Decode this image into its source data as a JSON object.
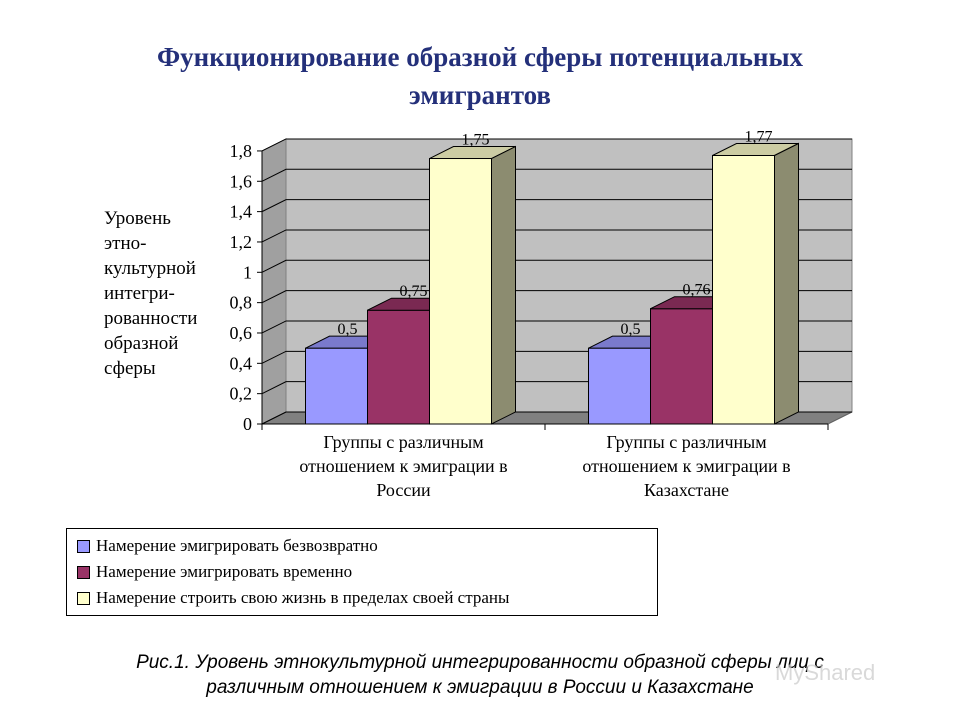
{
  "title": "Функционирование образной сферы потенциальных эмигрантов",
  "title_lines": [
    "Функционирование образной сферы потенциальных",
    "эмигрантов"
  ],
  "ylabel_lines": [
    "Уровень",
    "этно-",
    "культурной",
    "интегри-",
    "рованности",
    "образной",
    "сферы"
  ],
  "caption_lines": [
    "Рис.1. Уровень этнокультурной интегрированности образной сферы лиц с",
    "различным отношением к эмиграции в России и Казахстане"
  ],
  "watermark": "MyShared",
  "chart_data": {
    "type": "bar",
    "style": "3d-clustered",
    "ylim": [
      0,
      1.8
    ],
    "ytick_labels": [
      "0",
      "0,2",
      "0,4",
      "0,6",
      "0,8",
      "1",
      "1,2",
      "1,4",
      "1,6",
      "1,8"
    ],
    "grid": true,
    "legend_position": "bottom",
    "categories": [
      [
        "Группы с различным",
        "отношением к эмиграции в",
        "России"
      ],
      [
        "Группы с различным",
        "отношением к эмиграции в",
        "Казахстане"
      ]
    ],
    "series": [
      {
        "name": "Намерение эмигрировать безвозвратно",
        "color": "#9999ff",
        "values": [
          0.5,
          0.5
        ],
        "labels": [
          "0,5",
          "0,5"
        ]
      },
      {
        "name": "Намерение эмигрировать временно",
        "color": "#993366",
        "values": [
          0.75,
          0.76
        ],
        "labels": [
          "0,75",
          "0,76"
        ]
      },
      {
        "name": "Намерение строить свою жизнь в пределах своей страны",
        "color": "#ffffcc",
        "values": [
          1.75,
          1.77
        ],
        "labels": [
          "1,75",
          "1,77"
        ]
      }
    ]
  }
}
